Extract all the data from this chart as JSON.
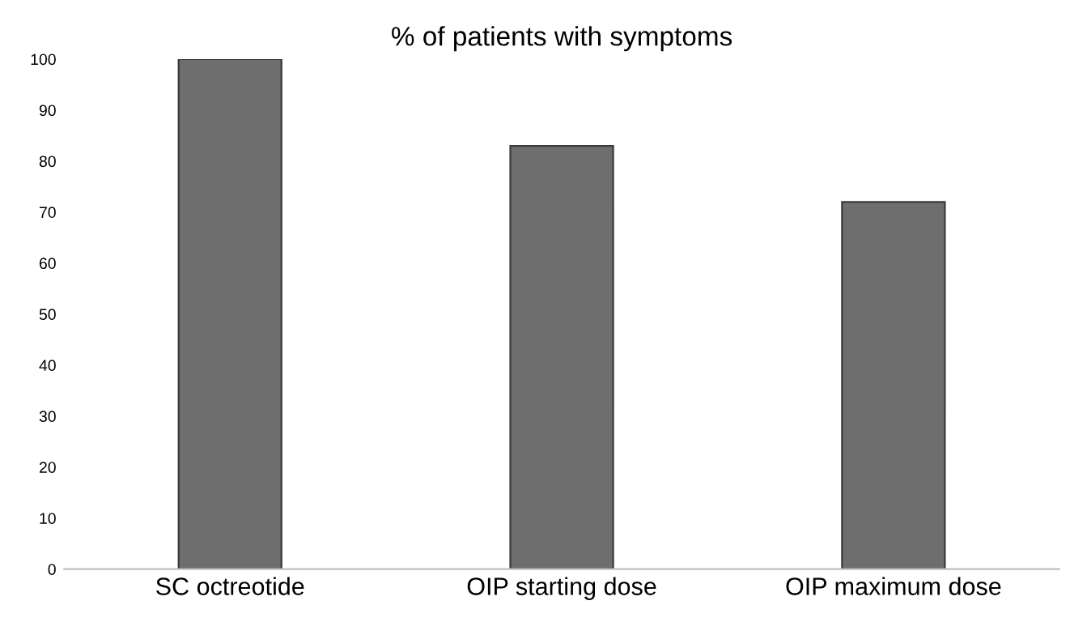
{
  "chart_data": {
    "type": "bar",
    "title": "% of patients with symptoms",
    "categories": [
      "SC octreotide",
      "OIP starting dose",
      "OIP maximum dose"
    ],
    "values": [
      100,
      83,
      72
    ],
    "color": "#6e6e6e",
    "ylim": [
      0,
      100
    ],
    "yticks": [
      0,
      10,
      20,
      30,
      40,
      50,
      60,
      70,
      80,
      90,
      100
    ],
    "grid": false
  }
}
